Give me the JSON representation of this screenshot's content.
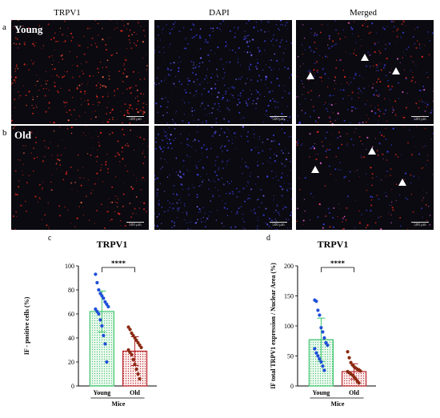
{
  "figure": {
    "columns": [
      "TRPV1",
      "DAPI",
      "Merged"
    ],
    "rows": [
      {
        "letter": "a",
        "label": "Young"
      },
      {
        "letter": "b",
        "label": "Old"
      }
    ],
    "scale_bar": "500 μm"
  },
  "chart_data": [
    {
      "type": "bar",
      "panel_letter": "c",
      "title": "TRPV1",
      "ylabel": "IF - positive cells (%)",
      "xlabel": "Mice",
      "categories": [
        "Young",
        "Old"
      ],
      "values": [
        62,
        29
      ],
      "errors": [
        17,
        12
      ],
      "ylim": [
        0,
        100
      ],
      "yticks": [
        0,
        20,
        40,
        60,
        80,
        100
      ],
      "significance": "****",
      "bar_colors": [
        "#3cc46a",
        "#b8242a"
      ],
      "point_colors": [
        "#1f4fd8",
        "#8b2a12"
      ],
      "points": [
        [
          93,
          86,
          80,
          77,
          75,
          73,
          70,
          68,
          66,
          64,
          62,
          60,
          55,
          50,
          42,
          35,
          20
        ],
        [
          49,
          47,
          44,
          42,
          40,
          38,
          36,
          34,
          32,
          30,
          28,
          26,
          22,
          18,
          14,
          10,
          6
        ]
      ]
    },
    {
      "type": "bar",
      "panel_letter": "d",
      "title": "TRPV1",
      "ylabel": "IF total TRPV1 expression / Nuclear Area (%)",
      "xlabel": "Mice",
      "categories": [
        "Young",
        "Old"
      ],
      "values": [
        77,
        24
      ],
      "errors": [
        36,
        13
      ],
      "ylim": [
        0,
        200
      ],
      "yticks": [
        0,
        50,
        100,
        150,
        200
      ],
      "significance": "****",
      "bar_colors": [
        "#3cc46a",
        "#b8242a"
      ],
      "point_colors": [
        "#1f4fd8",
        "#8b2a12"
      ],
      "points": [
        [
          143,
          141,
          126,
          118,
          97,
          90,
          80,
          72,
          68,
          62,
          55,
          50,
          45,
          40,
          33,
          26
        ],
        [
          57,
          47,
          39,
          35,
          32,
          30,
          28,
          27,
          25,
          24,
          22,
          20,
          18,
          15,
          12,
          8,
          5
        ]
      ]
    }
  ]
}
